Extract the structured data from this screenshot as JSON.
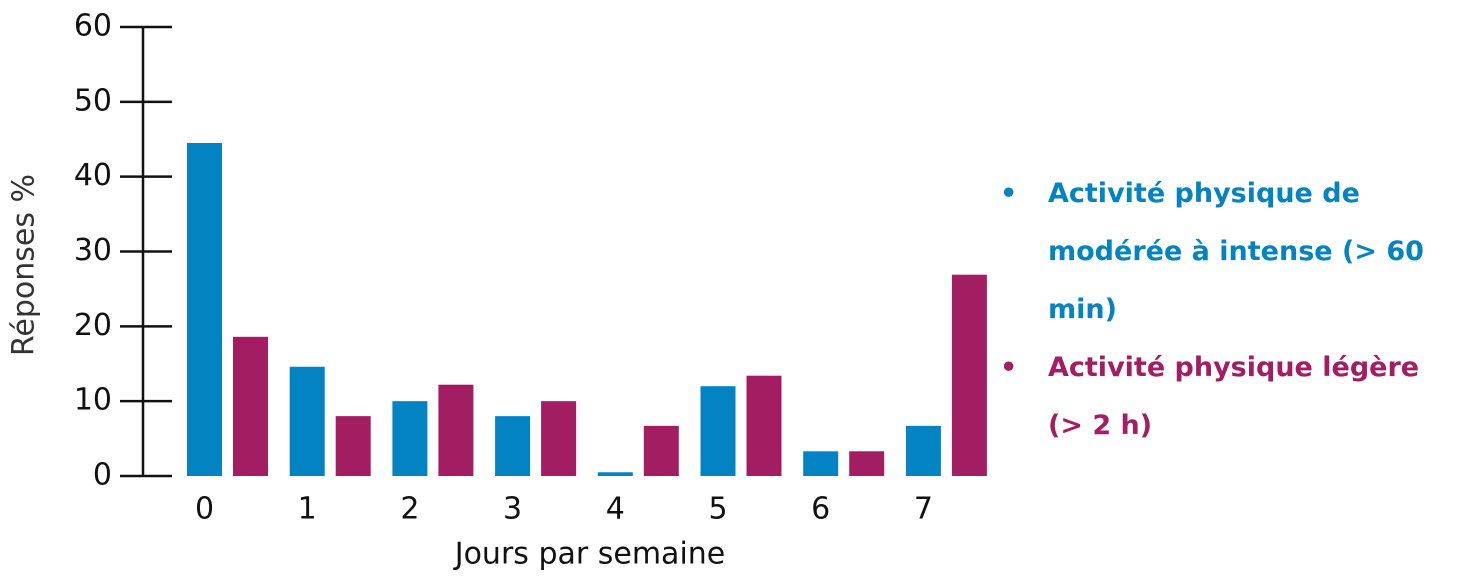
{
  "chart_data": {
    "type": "bar",
    "x_label": "Jours par semaine",
    "y_label": "Réponses %",
    "categories": [
      "0",
      "1",
      "2",
      "3",
      "4",
      "5",
      "6",
      "7"
    ],
    "series": [
      {
        "name": "Activité physique de modérée à intense (> 60 min)",
        "color": "#0383c2",
        "values": [
          44.5,
          14.6,
          10,
          8,
          0.5,
          12,
          3.3,
          6.7
        ]
      },
      {
        "name": "Activité physique légère (> 2 h)",
        "color": "#a31d63",
        "values": [
          18.6,
          8,
          12.2,
          10,
          6.7,
          13.4,
          3.3,
          26.9
        ]
      }
    ],
    "ylim": [
      0,
      60
    ],
    "yticks": [
      0,
      10,
      20,
      30,
      40,
      50,
      60
    ],
    "legend": "right"
  }
}
